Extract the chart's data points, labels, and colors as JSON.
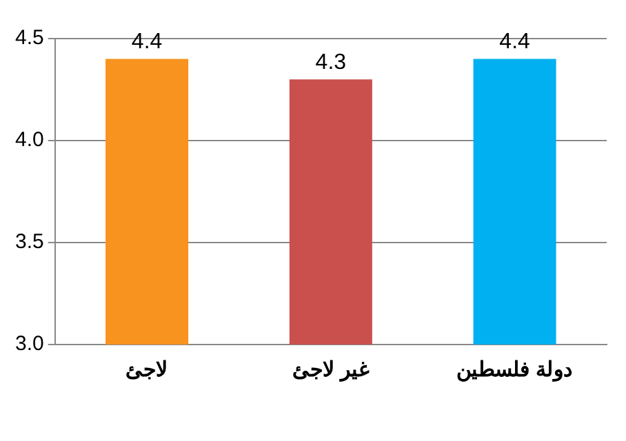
{
  "chart_data": {
    "type": "bar",
    "categories": [
      "لاجئ",
      "غير لاجئ",
      "دولة فلسطين"
    ],
    "values": [
      4.4,
      4.3,
      4.4
    ],
    "colors": [
      "#f7931e",
      "#c9504d",
      "#00b0f0"
    ],
    "ylim": [
      3,
      4.5
    ],
    "yticks": [
      {
        "value": 3,
        "label": "3.0"
      },
      {
        "value": 3.5,
        "label": "3.5"
      },
      {
        "value": 4,
        "label": "4.0"
      },
      {
        "value": 4.5,
        "label": "4.5"
      }
    ],
    "grid": "y",
    "data_labels": true
  }
}
